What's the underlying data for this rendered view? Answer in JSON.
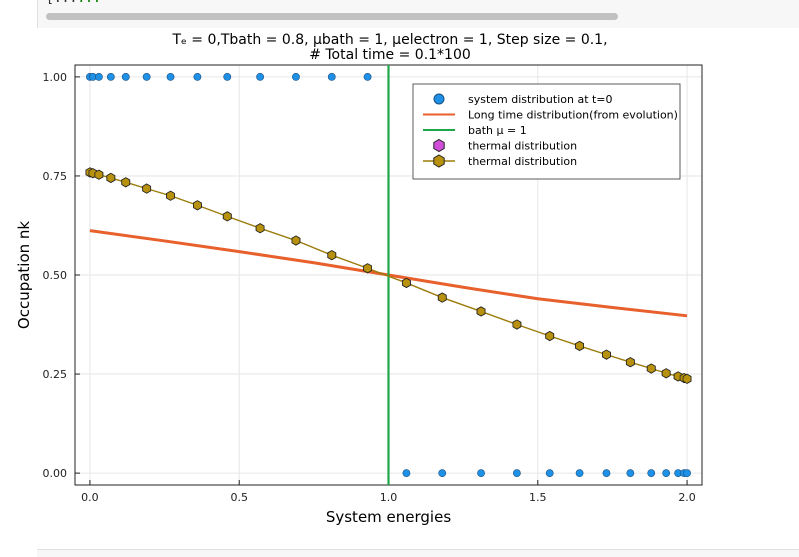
{
  "code_line": {
    "text_left": "[...",
    "highlight": "...",
    "text_right": ""
  },
  "chart_data": {
    "type": "scatter",
    "title_line1": "Tₑ = 0,Tbath = 0.8, μbath = 1, μelectron = 1, Step size = 0.1,",
    "title_line2": "#  Total time = 0.1*100",
    "xlabel": "System energies",
    "ylabel": "Occupation nk",
    "xlim": [
      -0.05,
      2.05
    ],
    "ylim": [
      -0.03,
      1.03
    ],
    "x_ticks": [
      0.0,
      0.5,
      1.0,
      1.5,
      2.0
    ],
    "x_tick_labels": [
      "0.0",
      "0.5",
      "1.0",
      "1.5",
      "2.0"
    ],
    "y_ticks": [
      0.0,
      0.25,
      0.5,
      0.75,
      1.0
    ],
    "y_tick_labels": [
      "0.00",
      "0.25",
      "0.50",
      "0.75",
      "1.00"
    ],
    "grid": true,
    "legend_position": "top-right",
    "energies": [
      0.0,
      0.01,
      0.03,
      0.07,
      0.12,
      0.19,
      0.27,
      0.36,
      0.46,
      0.57,
      0.69,
      0.81,
      0.93,
      1.06,
      1.18,
      1.31,
      1.43,
      1.54,
      1.64,
      1.73,
      1.81,
      1.88,
      1.93,
      1.97,
      1.99,
      2.0
    ],
    "colors": {
      "initial": "#1e90e6",
      "long_time": "#e8602c",
      "bath": "#1fa74a",
      "thermal_magenta": "#d14fd8",
      "thermal_gold": "#b8920e",
      "thermal_line": "#9c7c0a"
    },
    "series": [
      {
        "name": "system distribution at t=0",
        "kind": "scatter-circle",
        "x": [
          0.0,
          0.01,
          0.03,
          0.07,
          0.12,
          0.19,
          0.27,
          0.36,
          0.46,
          0.57,
          0.69,
          0.81,
          0.93,
          1.06,
          1.18,
          1.31,
          1.43,
          1.54,
          1.64,
          1.73,
          1.81,
          1.88,
          1.93,
          1.97,
          1.99,
          2.0
        ],
        "y": [
          1,
          1,
          1,
          1,
          1,
          1,
          1,
          1,
          1,
          1,
          1,
          1,
          1,
          0,
          0,
          0,
          0,
          0,
          0,
          0,
          0,
          0,
          0,
          0,
          0,
          0
        ]
      },
      {
        "name": "Long time distribution(from evolution)",
        "kind": "line",
        "x": [
          0.0,
          0.25,
          0.5,
          0.75,
          1.0,
          1.25,
          1.5,
          1.75,
          2.0
        ],
        "y": [
          0.612,
          0.586,
          0.559,
          0.531,
          0.5,
          0.469,
          0.44,
          0.418,
          0.397
        ]
      },
      {
        "name": "bath μ = 1",
        "kind": "vline",
        "x": [
          1.0,
          1.0
        ],
        "y": [
          -0.03,
          1.03
        ]
      },
      {
        "name": "thermal distribution",
        "kind": "scatter-hexagon",
        "x": [
          0.0,
          0.01,
          0.03,
          0.07,
          0.12,
          0.19,
          0.27,
          0.36,
          0.46,
          0.57,
          0.69,
          0.81,
          0.93,
          1.06,
          1.18,
          1.31,
          1.43,
          1.54,
          1.64,
          1.73,
          1.81,
          1.88,
          1.93,
          1.97,
          1.99,
          2.0
        ],
        "y": [
          0.759,
          0.757,
          0.753,
          0.745,
          0.734,
          0.718,
          0.7,
          0.676,
          0.648,
          0.618,
          0.587,
          0.55,
          0.517,
          0.48,
          0.443,
          0.408,
          0.375,
          0.346,
          0.321,
          0.299,
          0.28,
          0.264,
          0.252,
          0.244,
          0.24,
          0.238
        ]
      },
      {
        "name": "thermal distribution",
        "kind": "line-hexagon",
        "x": [
          0.0,
          0.01,
          0.03,
          0.07,
          0.12,
          0.19,
          0.27,
          0.36,
          0.46,
          0.57,
          0.69,
          0.81,
          0.93,
          1.06,
          1.18,
          1.31,
          1.43,
          1.54,
          1.64,
          1.73,
          1.81,
          1.88,
          1.93,
          1.97,
          1.99,
          2.0
        ],
        "y": [
          0.759,
          0.757,
          0.753,
          0.745,
          0.734,
          0.718,
          0.7,
          0.676,
          0.648,
          0.618,
          0.587,
          0.55,
          0.517,
          0.48,
          0.443,
          0.408,
          0.375,
          0.346,
          0.321,
          0.299,
          0.28,
          0.264,
          0.252,
          0.244,
          0.24,
          0.238
        ]
      }
    ]
  }
}
